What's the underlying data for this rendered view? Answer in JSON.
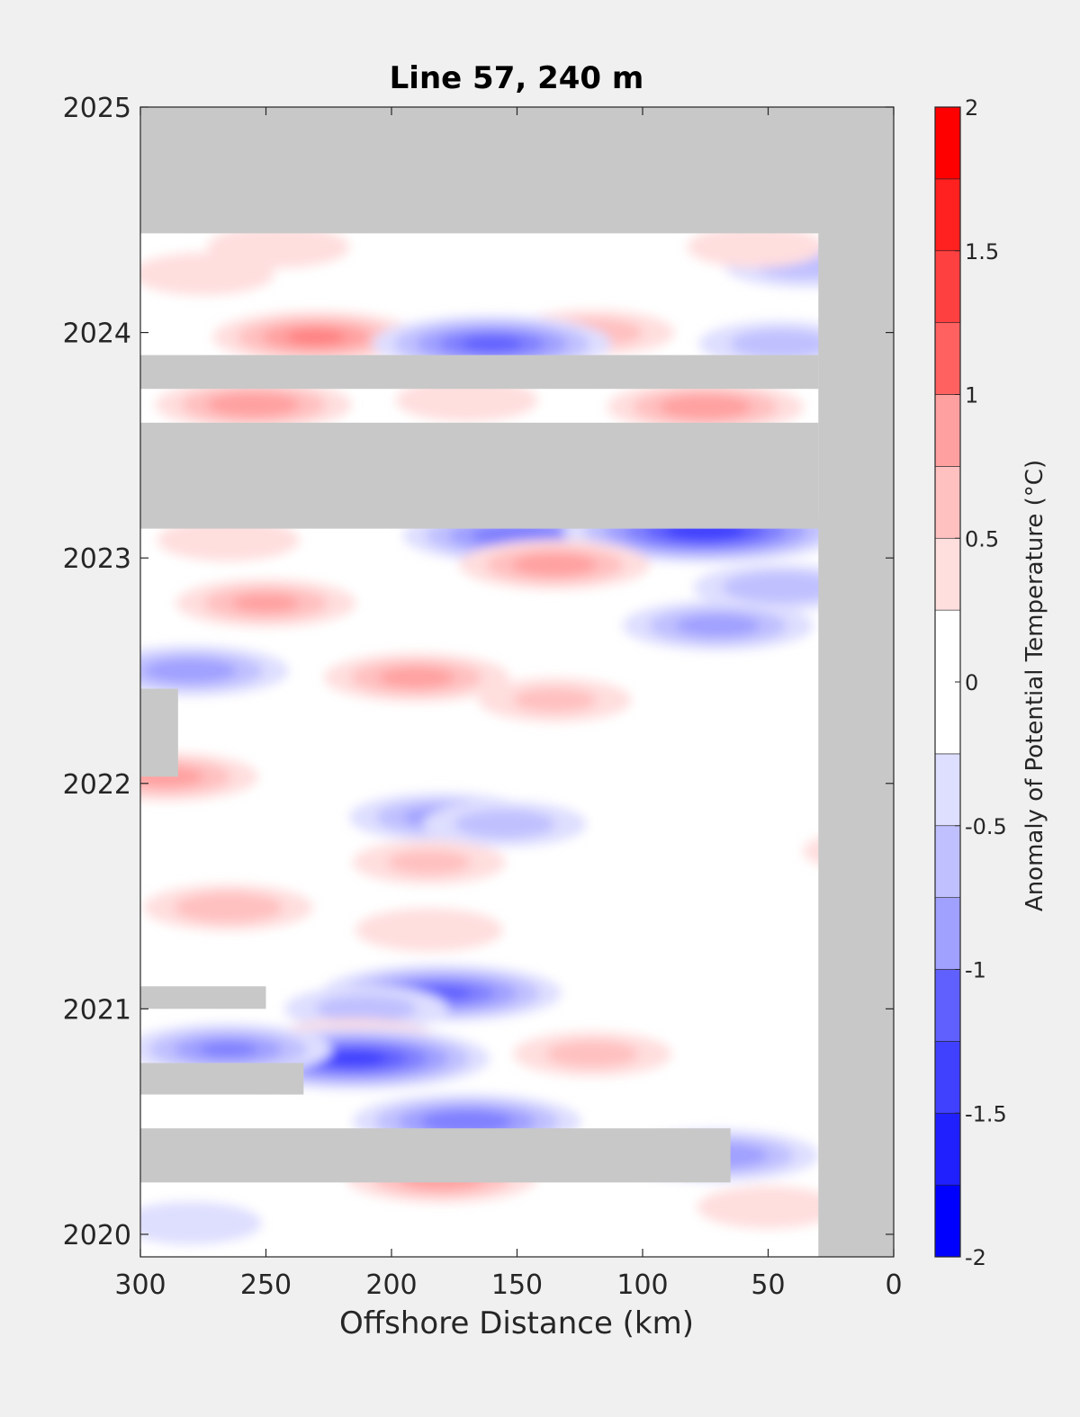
{
  "chart_data": {
    "type": "heatmap",
    "plot_kind": "filled-contour (Hovmöller)",
    "title": "Line 57, 240 m",
    "xlabel": "Offshore Distance (km)",
    "ylabel": "",
    "xlim": [
      300,
      0
    ],
    "x_reversed": true,
    "ylim": [
      2019.9,
      2025
    ],
    "x_ticks": [
      300,
      250,
      200,
      150,
      100,
      50,
      0
    ],
    "x_tick_labels": [
      "300",
      "250",
      "200",
      "150",
      "100",
      "50",
      "0"
    ],
    "y_ticks": [
      2020,
      2021,
      2022,
      2023,
      2024,
      2025
    ],
    "y_tick_labels": [
      "2020",
      "2021",
      "2022",
      "2023",
      "2024",
      "2025"
    ],
    "colorbar": {
      "label": "Anomaly of Potential Temperature (°C)",
      "range": [
        -2,
        2
      ],
      "ticks": [
        -2,
        -1.5,
        -1,
        -0.5,
        0,
        0.5,
        1,
        1.5,
        2
      ],
      "tick_labels": [
        "-2",
        "-1.5",
        "-1",
        "-0.5",
        "0",
        "0.5",
        "1",
        "1.5",
        "2"
      ],
      "levels": [
        -2,
        -1.75,
        -1.5,
        -1.25,
        -1,
        -0.75,
        -0.5,
        -0.25,
        0.25,
        0.5,
        0.75,
        1,
        1.25,
        1.5,
        1.75,
        2
      ],
      "colors": [
        "#0000ff",
        "#2020ff",
        "#4040ff",
        "#6060ff",
        "#8080ff",
        "#a0a0ff",
        "#c0c0ff",
        "#dedeff",
        "#ffffff",
        "#ffdede",
        "#ffc0c0",
        "#ffa0a0",
        "#ff8080",
        "#ff6060",
        "#ff4040",
        "#ff2020",
        "#ff0000"
      ]
    },
    "colors": {
      "missing": "#c8c8c8",
      "background": "#f0f0f0",
      "axis": "#262626"
    },
    "grid": false,
    "no_data_regions": [
      {
        "x": [
          300,
          0
        ],
        "y": [
          2024.44,
          2025
        ]
      },
      {
        "x": [
          30,
          0
        ],
        "y": [
          2019.9,
          2025
        ]
      },
      {
        "x": [
          300,
          30
        ],
        "y": [
          2023.13,
          2023.6
        ]
      },
      {
        "x": [
          300,
          30
        ],
        "y": [
          2023.75,
          2023.9
        ]
      },
      {
        "x": [
          300,
          285
        ],
        "y": [
          2022.03,
          2022.42
        ]
      },
      {
        "x": [
          300,
          250
        ],
        "y": [
          2021.0,
          2021.1
        ]
      },
      {
        "x": [
          300,
          235
        ],
        "y": [
          2020.62,
          2020.76
        ]
      },
      {
        "x": [
          300,
          65
        ],
        "y": [
          2020.23,
          2020.47
        ]
      }
    ],
    "anomalies": [
      {
        "x": 230,
        "y": 2023.98,
        "v": 1.0
      },
      {
        "x": 120,
        "y": 2024.0,
        "v": 0.6
      },
      {
        "x": 160,
        "y": 2023.95,
        "v": -1.3
      },
      {
        "x": 45,
        "y": 2023.95,
        "v": -0.6
      },
      {
        "x": 35,
        "y": 2024.3,
        "v": -0.6
      },
      {
        "x": 245,
        "y": 2024.38,
        "v": 0.4
      },
      {
        "x": 55,
        "y": 2024.38,
        "v": 0.35
      },
      {
        "x": 275,
        "y": 2024.26,
        "v": 0.4
      },
      {
        "x": 255,
        "y": 2023.68,
        "v": 0.9
      },
      {
        "x": 75,
        "y": 2023.67,
        "v": 0.9
      },
      {
        "x": 170,
        "y": 2023.7,
        "v": 0.4
      },
      {
        "x": 150,
        "y": 2023.1,
        "v": -1.2
      },
      {
        "x": 75,
        "y": 2023.12,
        "v": -1.7
      },
      {
        "x": 265,
        "y": 2023.08,
        "v": 0.4
      },
      {
        "x": 135,
        "y": 2022.97,
        "v": 0.85
      },
      {
        "x": 250,
        "y": 2022.8,
        "v": 0.75
      },
      {
        "x": 45,
        "y": 2022.87,
        "v": -0.7
      },
      {
        "x": 70,
        "y": 2022.7,
        "v": -0.85
      },
      {
        "x": 280,
        "y": 2022.5,
        "v": -0.9
      },
      {
        "x": 190,
        "y": 2022.47,
        "v": 0.8
      },
      {
        "x": 135,
        "y": 2022.37,
        "v": 0.5
      },
      {
        "x": 290,
        "y": 2022.03,
        "v": 0.8
      },
      {
        "x": 180,
        "y": 2021.85,
        "v": -0.8
      },
      {
        "x": 155,
        "y": 2021.82,
        "v": -0.6
      },
      {
        "x": 185,
        "y": 2021.65,
        "v": 0.5
      },
      {
        "x": 265,
        "y": 2021.45,
        "v": 0.65
      },
      {
        "x": 185,
        "y": 2021.35,
        "v": 0.45
      },
      {
        "x": 10,
        "y": 2021.7,
        "v": 0.3
      },
      {
        "x": 180,
        "y": 2021.07,
        "v": -1.3
      },
      {
        "x": 210,
        "y": 2021.0,
        "v": -0.6
      },
      {
        "x": 215,
        "y": 2020.85,
        "v": 0.7
      },
      {
        "x": 120,
        "y": 2020.8,
        "v": 0.55
      },
      {
        "x": 215,
        "y": 2020.78,
        "v": -1.6
      },
      {
        "x": 265,
        "y": 2020.82,
        "v": -1.0
      },
      {
        "x": 170,
        "y": 2020.5,
        "v": -1.2
      },
      {
        "x": 180,
        "y": 2020.25,
        "v": 0.85
      },
      {
        "x": 70,
        "y": 2020.35,
        "v": -0.95
      },
      {
        "x": 50,
        "y": 2020.12,
        "v": 0.4
      },
      {
        "x": 280,
        "y": 2020.05,
        "v": -0.4
      }
    ]
  }
}
